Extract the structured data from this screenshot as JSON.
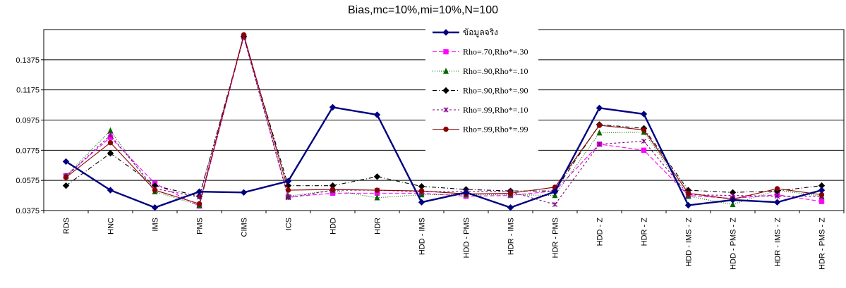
{
  "chart_data": {
    "type": "line",
    "title": "Bias,mc=10%,mi=10%,N=100",
    "xlabel": "",
    "ylabel": "",
    "ylim": [
      0.0375,
      0.1575
    ],
    "yticks": [
      "0.0375",
      "0.0575",
      "0.0775",
      "0.0975",
      "0.1175",
      "0.1375"
    ],
    "ytick_values": [
      0.0375,
      0.0575,
      0.0775,
      0.0975,
      0.1175,
      0.1375
    ],
    "grid": "horizontal",
    "legend_position": "top-center",
    "categories": [
      "RDS",
      "HNC",
      "IMS",
      "PMS",
      "CIMS",
      "ICS",
      "HDD",
      "HDR",
      "HDD - IMS",
      "HDD - PMS",
      "HDR - IMS",
      "HDR - PMS",
      "HDD - Z",
      "HDR - Z",
      "HDD - IMS - Z",
      "HDD - PMS - Z",
      "HDR - IMS - Z",
      "HDR - PMS - Z"
    ],
    "series": [
      {
        "name": "ข้อมูลจริง",
        "color": "#000080",
        "dash": "",
        "marker": "diamond",
        "values": [
          0.07,
          0.051,
          0.0395,
          0.05,
          0.0495,
          0.057,
          0.106,
          0.101,
          0.043,
          0.0495,
          0.0395,
          0.05,
          0.1055,
          0.1015,
          0.041,
          0.0445,
          0.043,
          0.051
        ]
      },
      {
        "name": "Rho=.70,Rho*=.30",
        "color": "#ff00ff",
        "dash": "6,3",
        "marker": "square",
        "values": [
          0.0605,
          0.086,
          0.0555,
          0.0405,
          0.153,
          0.0465,
          0.049,
          0.049,
          0.049,
          0.047,
          0.0475,
          0.0505,
          0.0815,
          0.0775,
          0.0475,
          0.0455,
          0.048,
          0.0435
        ]
      },
      {
        "name": "Rho=.90,Rho*=.10",
        "color": "#006400",
        "dash": "1,2",
        "marker": "triangle",
        "values": [
          0.0605,
          0.0905,
          0.05,
          0.041,
          0.1535,
          0.047,
          0.051,
          0.046,
          0.048,
          0.048,
          0.048,
          0.0475,
          0.089,
          0.0895,
          0.047,
          0.0415,
          0.051,
          0.047
        ]
      },
      {
        "name": "Rho=.90,Rho*=.90",
        "color": "#000000",
        "dash": "6,3,1,3",
        "marker": "diamond",
        "values": [
          0.054,
          0.0755,
          0.054,
          0.047,
          0.153,
          0.054,
          0.054,
          0.06,
          0.0535,
          0.0515,
          0.0505,
          0.0505,
          0.0945,
          0.092,
          0.051,
          0.0495,
          0.0505,
          0.054
        ]
      },
      {
        "name": "Rho=.99,Rho*=.10",
        "color": "#800080",
        "dash": "3,3",
        "marker": "x",
        "values": [
          0.06,
          0.0875,
          0.052,
          0.0465,
          0.1525,
          0.046,
          0.051,
          0.051,
          0.05,
          0.05,
          0.05,
          0.0415,
          0.0815,
          0.0835,
          0.048,
          0.0475,
          0.047,
          0.047
        ]
      },
      {
        "name": "Rho=.99,Rho*=.99",
        "color": "#8b0000",
        "dash": "",
        "marker": "circle",
        "values": [
          0.0595,
          0.0825,
          0.051,
          0.042,
          0.154,
          0.051,
          0.0515,
          0.051,
          0.0505,
          0.0485,
          0.049,
          0.053,
          0.094,
          0.091,
          0.049,
          0.045,
          0.052,
          0.048
        ]
      }
    ]
  }
}
